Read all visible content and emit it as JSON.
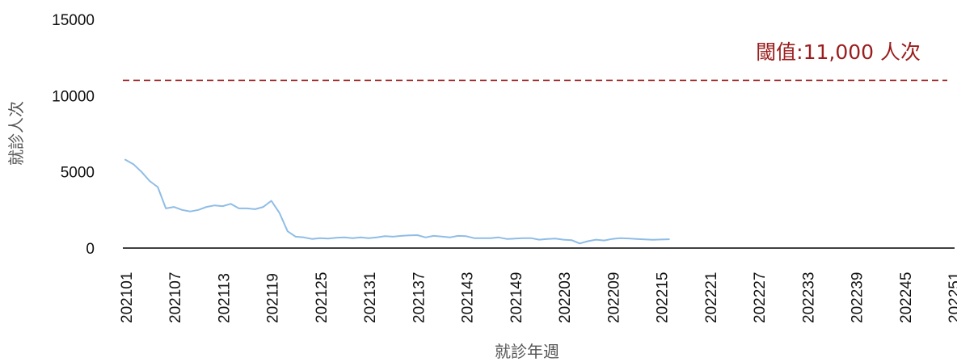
{
  "chart_data": {
    "type": "line",
    "xlabel": "就診年週",
    "ylabel": "就診人次",
    "ylim": [
      0,
      15000
    ],
    "y_ticks": [
      "0",
      "5000",
      "10000",
      "15000"
    ],
    "x_ticks": [
      "202101",
      "202107",
      "202113",
      "202119",
      "202125",
      "202131",
      "202137",
      "202143",
      "202149",
      "202203",
      "202209",
      "202215",
      "202221",
      "202227",
      "202233",
      "202239",
      "202245",
      "202251"
    ],
    "threshold": {
      "value": 11000,
      "label": "閾值:11,000 人次",
      "color": "#9b1c1c"
    },
    "series": [
      {
        "color": "#8fbde6",
        "values": [
          5800,
          5500,
          5000,
          4400,
          4000,
          2600,
          2700,
          2500,
          2400,
          2500,
          2700,
          2800,
          2750,
          2900,
          2600,
          2600,
          2550,
          2700,
          3100,
          2300,
          1100,
          750,
          700,
          600,
          650,
          620,
          680,
          700,
          650,
          700,
          650,
          700,
          780,
          750,
          800,
          830,
          850,
          700,
          800,
          760,
          700,
          800,
          780,
          650,
          650,
          650,
          700,
          600,
          620,
          650,
          650,
          550,
          600,
          620,
          550,
          520,
          300,
          450,
          550,
          500,
          600,
          650,
          630,
          600,
          570,
          540,
          560,
          580
        ]
      }
    ]
  }
}
